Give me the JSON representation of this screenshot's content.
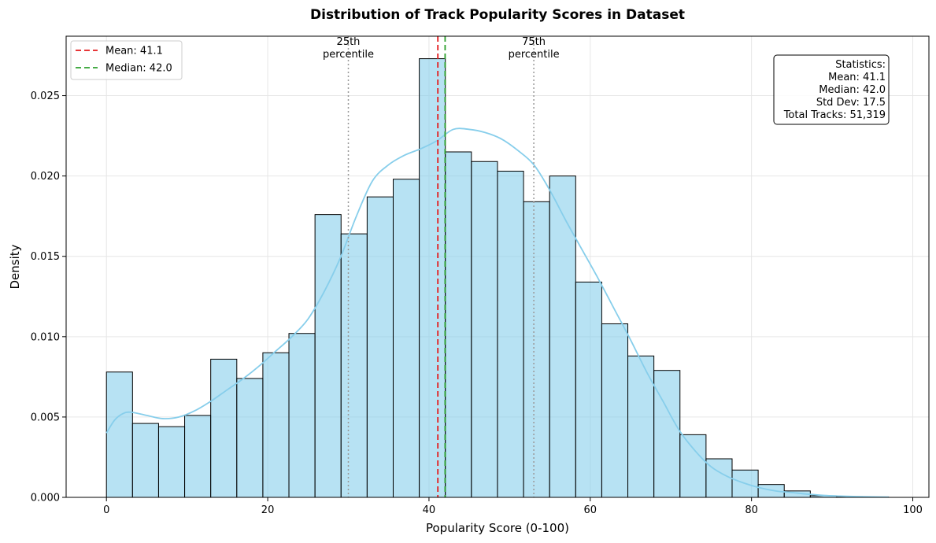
{
  "chart_data": {
    "type": "bar",
    "title": "Distribution of Track Popularity Scores in Dataset",
    "xlabel": "Popularity Score (0-100)",
    "ylabel": "Density",
    "xlim": [
      -5,
      102
    ],
    "ylim": [
      0,
      0.0287
    ],
    "xticks": [
      0,
      20,
      40,
      60,
      80,
      100
    ],
    "yticks": [
      0.0,
      0.005,
      0.01,
      0.015,
      0.02,
      0.025
    ],
    "ytick_labels": [
      "0.000",
      "0.005",
      "0.010",
      "0.015",
      "0.020",
      "0.025"
    ],
    "grid": true,
    "bins": {
      "start": 0,
      "width": 3.233,
      "densities": [
        0.0078,
        0.0046,
        0.0044,
        0.0051,
        0.0086,
        0.0074,
        0.009,
        0.0102,
        0.0176,
        0.0164,
        0.0187,
        0.0198,
        0.0273,
        0.0215,
        0.0209,
        0.0203,
        0.0184,
        0.02,
        0.0134,
        0.0108,
        0.0088,
        0.0079,
        0.0039,
        0.0024,
        0.0017,
        0.0008,
        0.0004,
        0.0001,
        5e-05,
        2e-05
      ]
    },
    "bar_color": "#87CEEB",
    "kde": {
      "color": "#87CEEB",
      "x": [
        0,
        1,
        2,
        3,
        5,
        7,
        9,
        11,
        13,
        15,
        17,
        19,
        21,
        23,
        25,
        27,
        29,
        31,
        33,
        35,
        37,
        39,
        41,
        43,
        45,
        47,
        49,
        51,
        53,
        55,
        57,
        59,
        61,
        63,
        65,
        67,
        69,
        71,
        73,
        75,
        77,
        79,
        81,
        83,
        85,
        87,
        89,
        91,
        93,
        95,
        97
      ],
      "y": [
        0.004,
        0.0048,
        0.0052,
        0.0053,
        0.0051,
        0.0049,
        0.005,
        0.0054,
        0.006,
        0.0067,
        0.0074,
        0.0082,
        0.0091,
        0.01,
        0.0111,
        0.0128,
        0.0149,
        0.0175,
        0.0197,
        0.0207,
        0.0213,
        0.0217,
        0.0222,
        0.0229,
        0.0229,
        0.0227,
        0.0223,
        0.0216,
        0.0207,
        0.0191,
        0.0172,
        0.0154,
        0.0136,
        0.0117,
        0.0098,
        0.0078,
        0.006,
        0.0042,
        0.0029,
        0.0019,
        0.0013,
        0.0009,
        0.0006,
        0.0004,
        0.0003,
        0.0002,
        0.00012,
        8e-05,
        5e-05,
        3e-05,
        2e-05
      ]
    },
    "vlines": [
      {
        "name": "mean-line",
        "x": 41.1,
        "color": "#e41a1c",
        "style": "dashed"
      },
      {
        "name": "median-line",
        "x": 42.0,
        "color": "#2ca02c",
        "style": "dashed"
      },
      {
        "name": "p25-line",
        "x": 30.0,
        "color": "#999999",
        "style": "dotted"
      },
      {
        "name": "p75-line",
        "x": 53.0,
        "color": "#999999",
        "style": "dotted"
      }
    ],
    "annotations": [
      {
        "x": 30.0,
        "lines": [
          "25th",
          "percentile"
        ]
      },
      {
        "x": 53.0,
        "lines": [
          "75th",
          "percentile"
        ]
      }
    ],
    "legend": {
      "placement": "top-left",
      "entries": [
        {
          "label": "Mean: 41.1",
          "color": "#e41a1c"
        },
        {
          "label": "Median: 42.0",
          "color": "#2ca02c"
        }
      ]
    },
    "stats_box": {
      "placement": "top-right",
      "lines": [
        "Statistics:",
        "Mean: 41.1",
        "Median: 42.0",
        "Std Dev: 17.5",
        "Total Tracks: 51,319"
      ]
    }
  }
}
